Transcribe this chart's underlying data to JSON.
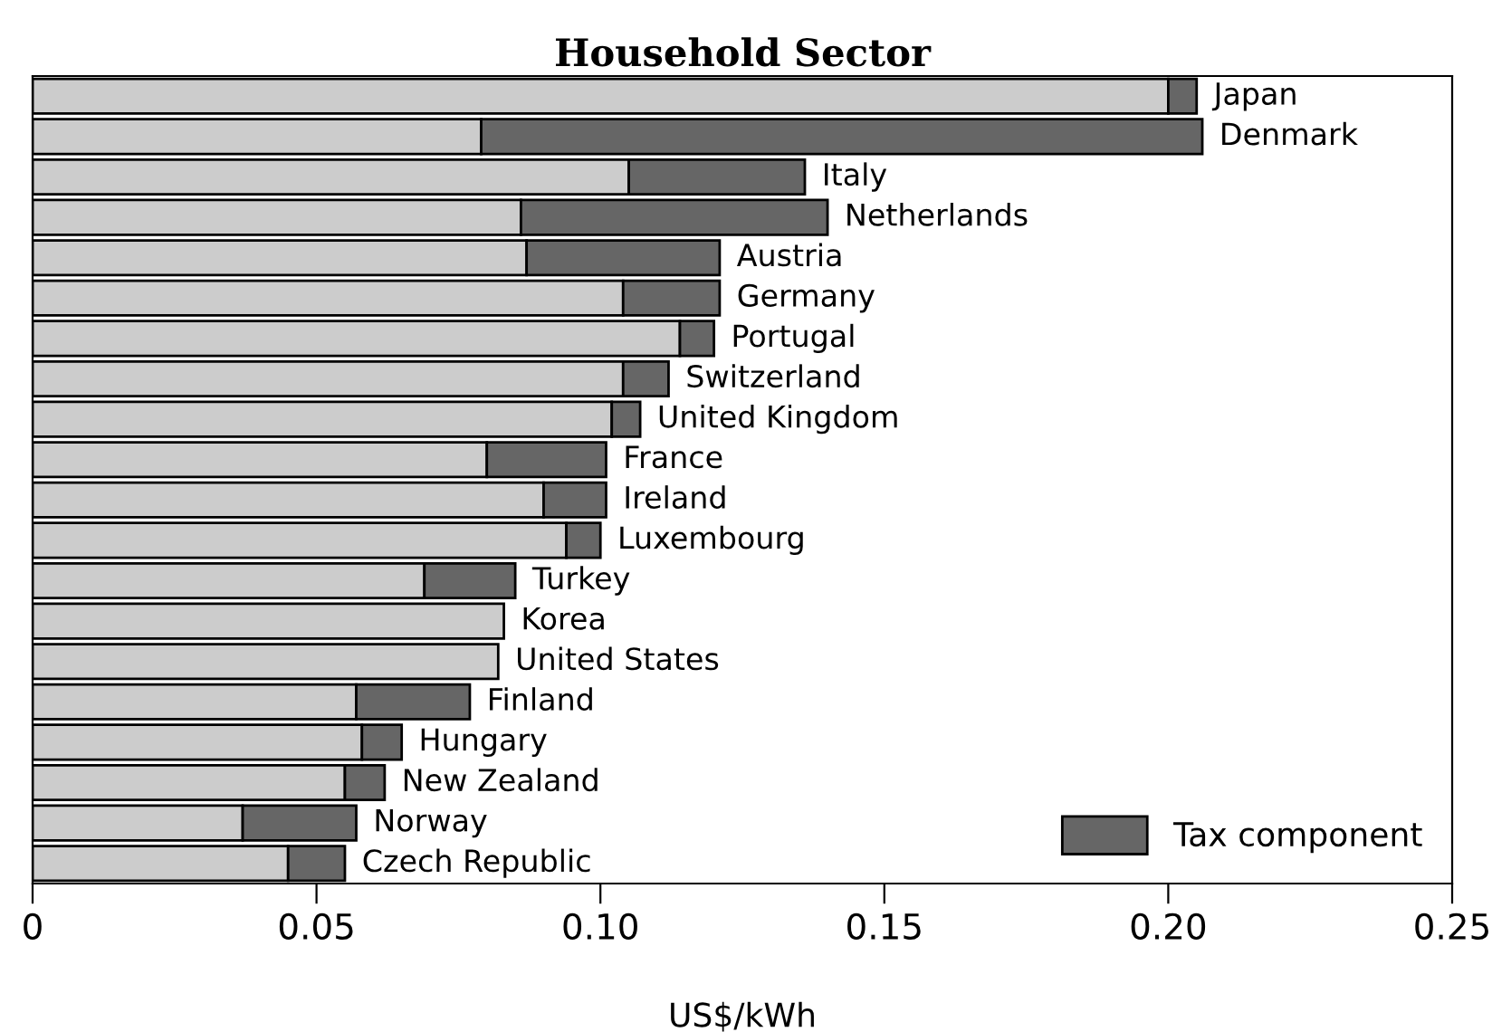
{
  "chart_data": {
    "type": "bar",
    "orientation": "horizontal",
    "stacked": true,
    "title": "Household Sector",
    "xlabel": "US$/kWh",
    "categories": [
      "Japan",
      "Denmark",
      "Italy",
      "Netherlands",
      "Austria",
      "Germany",
      "Portugal",
      "Switzerland",
      "United Kingdom",
      "France",
      "Ireland",
      "Luxembourg",
      "Turkey",
      "Korea",
      "United States",
      "Finland",
      "Hungary",
      "New Zealand",
      "Norway",
      "Czech Republic"
    ],
    "series": [
      {
        "color": "#cccccc",
        "values": [
          0.2,
          0.079,
          0.105,
          0.086,
          0.087,
          0.104,
          0.114,
          0.104,
          0.102,
          0.08,
          0.09,
          0.094,
          0.069,
          0.083,
          0.082,
          0.057,
          0.058,
          0.055,
          0.037,
          0.045
        ]
      },
      {
        "name": "Tax component",
        "color": "#666666",
        "values": [
          0.005,
          0.127,
          0.031,
          0.054,
          0.034,
          0.017,
          0.006,
          0.008,
          0.005,
          0.021,
          0.011,
          0.006,
          0.016,
          null,
          null,
          0.02,
          0.007,
          0.007,
          0.02,
          0.01
        ]
      }
    ],
    "xlim": [
      0,
      0.25
    ],
    "xticks": [
      0,
      {
        "value": 0.05,
        "label": "0.05"
      },
      {
        "value": 0.1,
        "label": "0.10"
      },
      {
        "value": 0.15,
        "label": "0.15"
      },
      {
        "value": 0.2,
        "label": "0.20"
      },
      {
        "value": 0.25,
        "label": "0.25"
      }
    ],
    "tick_labels": "x",
    "legend": "bottom right",
    "grid": false
  }
}
